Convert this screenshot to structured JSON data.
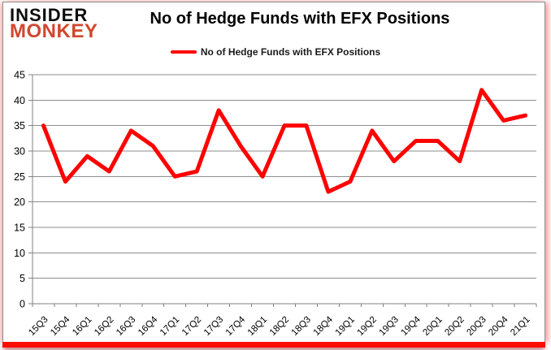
{
  "logo": {
    "line1": "INSIDER",
    "line2": "MONKEY"
  },
  "header": {
    "title": "No of Hedge Funds with EFX Positions"
  },
  "legend": {
    "label": "No of Hedge Funds with EFX Positions"
  },
  "chart_data": {
    "type": "line",
    "title": "No of Hedge Funds with EFX Positions",
    "categories": [
      "15Q3",
      "15Q4",
      "16Q1",
      "16Q2",
      "16Q3",
      "16Q4",
      "17Q1",
      "17Q2",
      "17Q3",
      "17Q4",
      "18Q1",
      "18Q2",
      "18Q3",
      "18Q4",
      "19Q1",
      "19Q2",
      "19Q3",
      "19Q4",
      "20Q1",
      "20Q2",
      "20Q3",
      "20Q4",
      "21Q1"
    ],
    "series": [
      {
        "name": "No of Hedge Funds with EFX Positions",
        "color": "#ff0000",
        "values": [
          35,
          24,
          29,
          26,
          34,
          31,
          25,
          26,
          38,
          31,
          25,
          35,
          35,
          22,
          24,
          34,
          28,
          32,
          32,
          28,
          42,
          36,
          37
        ]
      }
    ],
    "ylim": [
      0,
      45
    ],
    "ytick_step": 5,
    "xlabel": "",
    "ylabel": "",
    "grid": true,
    "legend_position": "top"
  },
  "colors": {
    "line": "#ff0000",
    "logo_red": "#d0472e",
    "grid": "#8e8e8e",
    "axis": "#808080",
    "tick_label": "#000000",
    "bottom_band": "#fb0d00"
  }
}
